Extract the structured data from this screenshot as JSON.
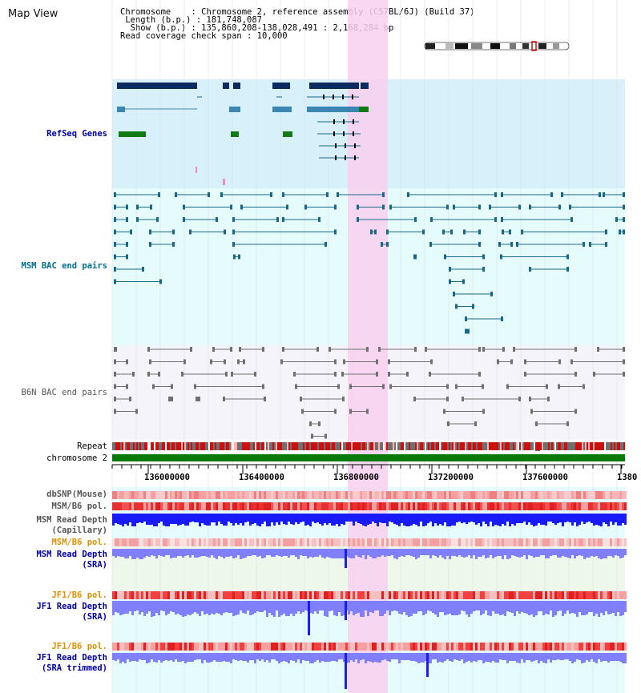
{
  "header": {
    "title": "Map View",
    "chromosome_line": "Chromosome    : Chromosome 2, reference assembly (C57BL/6J) (Build 37)",
    "length_line": " Length (b.p.) : 181,748,087",
    "show_line": "  Show (b.p.) : 135,860,208-138,028,491 : 2,168,284 bp",
    "coverage_line": "Read coverage check span : 10,000"
  },
  "tracks": {
    "refseq_label": "RefSeq Genes",
    "msm_bac_label": "MSM BAC end pairs",
    "b6n_bac_label": "B6N BAC end pairs",
    "repeat_label": "Repeat",
    "chromosome_label": "chromosome 2",
    "dbsnp_label": "dbSNP(Mouse)",
    "msm_b6_pol_label": "MSM/B6 pol.",
    "msm_depth_cap_label_1": "MSM Read Depth",
    "msm_depth_cap_label_2": "(Capillary)",
    "msm_b6_pol2_label": "MSM/B6 pol.",
    "msm_depth_sra_label_1": "MSM Read Depth",
    "msm_depth_sra_label_2": "(SRA)",
    "jf1_pol_label": "JF1/B6 pol.",
    "jf1_depth_sra_label_1": "JF1 Read Depth",
    "jf1_depth_sra_label_2": "(SRA)",
    "jf1_pol2_label": "JF1/B6 pol.",
    "jf1_trim_label_1": "JF1 Read Depth",
    "jf1_trim_label_2": "(SRA trimmed)"
  },
  "axis": {
    "ticks": [
      "136000000",
      "136400000",
      "136800000",
      "137200000",
      "137600000",
      "1380"
    ]
  },
  "colors": {
    "refseq_bg": "#d8f0fa",
    "msm_bg": "#e6fbfb",
    "b6n_bg": "#f4f4fa",
    "highlight": "#f8d0f0",
    "gene_dark": "#0a2a60",
    "gene_mid": "#3c86b4",
    "gene_green": "#127a12",
    "msm_line": "#1a6888",
    "b6n_line": "#707070",
    "chromosome": "#0a7a0a",
    "depth_dark": "#1a1aff",
    "depth_light": "#8080ff",
    "label_blue": "#0000aa",
    "label_orange": "#e09000",
    "label_teal": "#007090"
  }
}
